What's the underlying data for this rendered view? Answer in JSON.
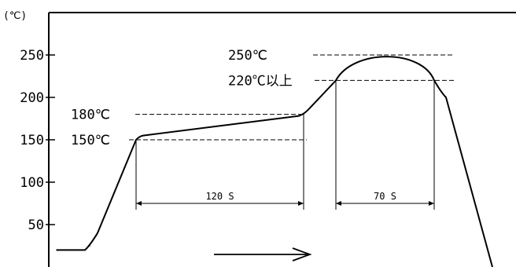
{
  "chart_data": {
    "type": "line",
    "title": "",
    "xlabel": "",
    "ylabel": "",
    "y_unit": "(℃)",
    "y_ticks": [
      50,
      100,
      150,
      200,
      250
    ],
    "y_tick_labels": [
      "50",
      "100",
      "150",
      "200",
      "250"
    ],
    "ylim": [
      0,
      290
    ],
    "grid": false,
    "series": [
      {
        "values": [
          20,
          20,
          25,
          40,
          150,
          155,
          180,
          220,
          250,
          250,
          220,
          200,
          0
        ]
      }
    ],
    "annotations": {
      "temp_250": "250℃",
      "temp_220": "220℃以上",
      "temp_180": "180℃",
      "temp_150": "150℃",
      "dim_preheat": "120 S",
      "dim_peak": "70 S"
    },
    "time_arrow": true
  }
}
